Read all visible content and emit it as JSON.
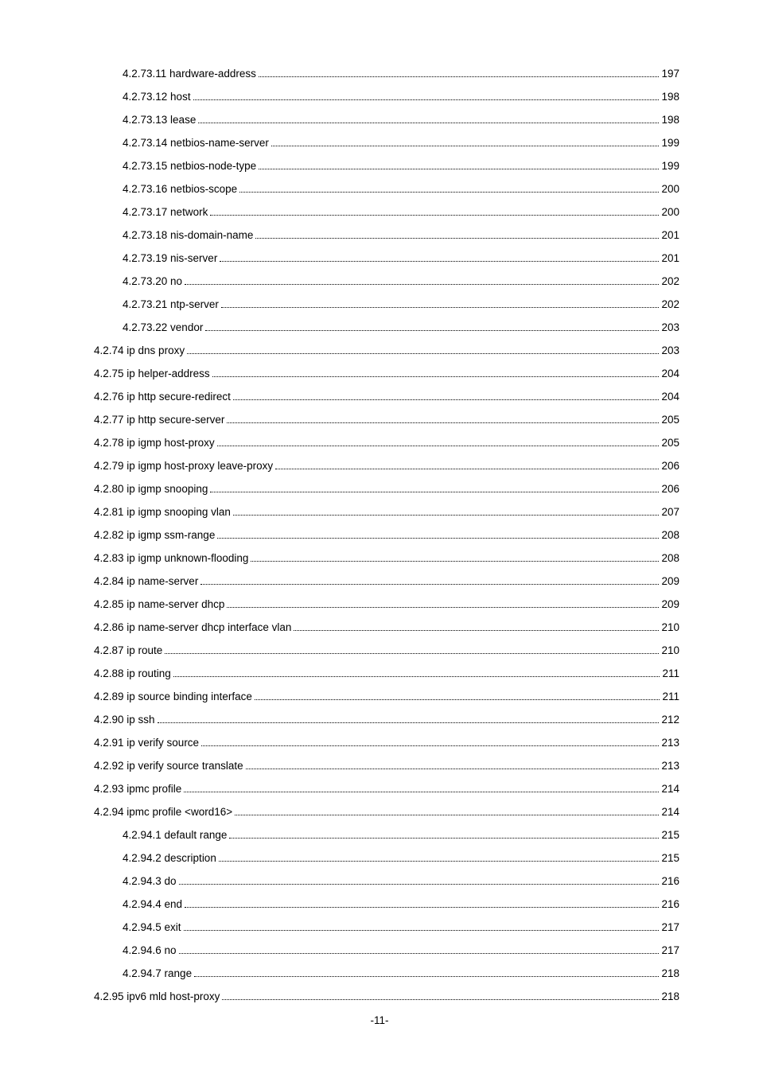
{
  "font_color": "#000000",
  "background_color": "#ffffff",
  "entries": [
    {
      "level": 2,
      "title": "4.2.73.11 hardware-address",
      "page": "197"
    },
    {
      "level": 2,
      "title": "4.2.73.12 host",
      "page": "198"
    },
    {
      "level": 2,
      "title": "4.2.73.13 lease",
      "page": "198"
    },
    {
      "level": 2,
      "title": "4.2.73.14 netbios-name-server",
      "page": "199"
    },
    {
      "level": 2,
      "title": "4.2.73.15 netbios-node-type",
      "page": "199"
    },
    {
      "level": 2,
      "title": "4.2.73.16 netbios-scope",
      "page": "200"
    },
    {
      "level": 2,
      "title": "4.2.73.17 network",
      "page": "200"
    },
    {
      "level": 2,
      "title": "4.2.73.18 nis-domain-name",
      "page": "201"
    },
    {
      "level": 2,
      "title": "4.2.73.19 nis-server",
      "page": "201"
    },
    {
      "level": 2,
      "title": "4.2.73.20 no",
      "page": "202"
    },
    {
      "level": 2,
      "title": "4.2.73.21 ntp-server",
      "page": "202"
    },
    {
      "level": 2,
      "title": "4.2.73.22 vendor",
      "page": "203"
    },
    {
      "level": 1,
      "title": "4.2.74 ip dns proxy",
      "page": "203"
    },
    {
      "level": 1,
      "title": "4.2.75 ip helper-address",
      "page": "204"
    },
    {
      "level": 1,
      "title": "4.2.76 ip http secure-redirect",
      "page": "204"
    },
    {
      "level": 1,
      "title": "4.2.77 ip http secure-server",
      "page": "205"
    },
    {
      "level": 1,
      "title": "4.2.78 ip igmp host-proxy",
      "page": "205"
    },
    {
      "level": 1,
      "title": "4.2.79 ip igmp host-proxy leave-proxy",
      "page": "206"
    },
    {
      "level": 1,
      "title": "4.2.80 ip igmp snooping",
      "page": "206"
    },
    {
      "level": 1,
      "title": "4.2.81 ip igmp snooping vlan",
      "page": "207"
    },
    {
      "level": 1,
      "title": "4.2.82 ip igmp ssm-range",
      "page": "208"
    },
    {
      "level": 1,
      "title": "4.2.83 ip igmp unknown-flooding",
      "page": "208"
    },
    {
      "level": 1,
      "title": "4.2.84 ip name-server",
      "page": "209"
    },
    {
      "level": 1,
      "title": "4.2.85 ip name-server dhcp",
      "page": "209"
    },
    {
      "level": 1,
      "title": "4.2.86 ip name-server dhcp interface vlan",
      "page": "210"
    },
    {
      "level": 1,
      "title": "4.2.87 ip route",
      "page": "210"
    },
    {
      "level": 1,
      "title": "4.2.88 ip routing",
      "page": "211"
    },
    {
      "level": 1,
      "title": "4.2.89 ip source binding interface",
      "page": "211"
    },
    {
      "level": 1,
      "title": "4.2.90 ip ssh",
      "page": "212"
    },
    {
      "level": 1,
      "title": "4.2.91 ip verify source",
      "page": "213"
    },
    {
      "level": 1,
      "title": "4.2.92 ip verify source translate",
      "page": "213"
    },
    {
      "level": 1,
      "title": "4.2.93 ipmc profile",
      "page": "214"
    },
    {
      "level": 1,
      "title": "4.2.94 ipmc profile <word16>",
      "page": "214"
    },
    {
      "level": 2,
      "title": "4.2.94.1 default range",
      "page": "215"
    },
    {
      "level": 2,
      "title": "4.2.94.2 description",
      "page": "215"
    },
    {
      "level": 2,
      "title": "4.2.94.3 do",
      "page": "216"
    },
    {
      "level": 2,
      "title": "4.2.94.4 end",
      "page": "216"
    },
    {
      "level": 2,
      "title": "4.2.94.5 exit",
      "page": "217"
    },
    {
      "level": 2,
      "title": "4.2.94.6 no",
      "page": "217"
    },
    {
      "level": 2,
      "title": "4.2.94.7 range",
      "page": "218"
    },
    {
      "level": 1,
      "title": "4.2.95 ipv6 mld host-proxy",
      "page": "218"
    }
  ],
  "page_number": "-11-"
}
